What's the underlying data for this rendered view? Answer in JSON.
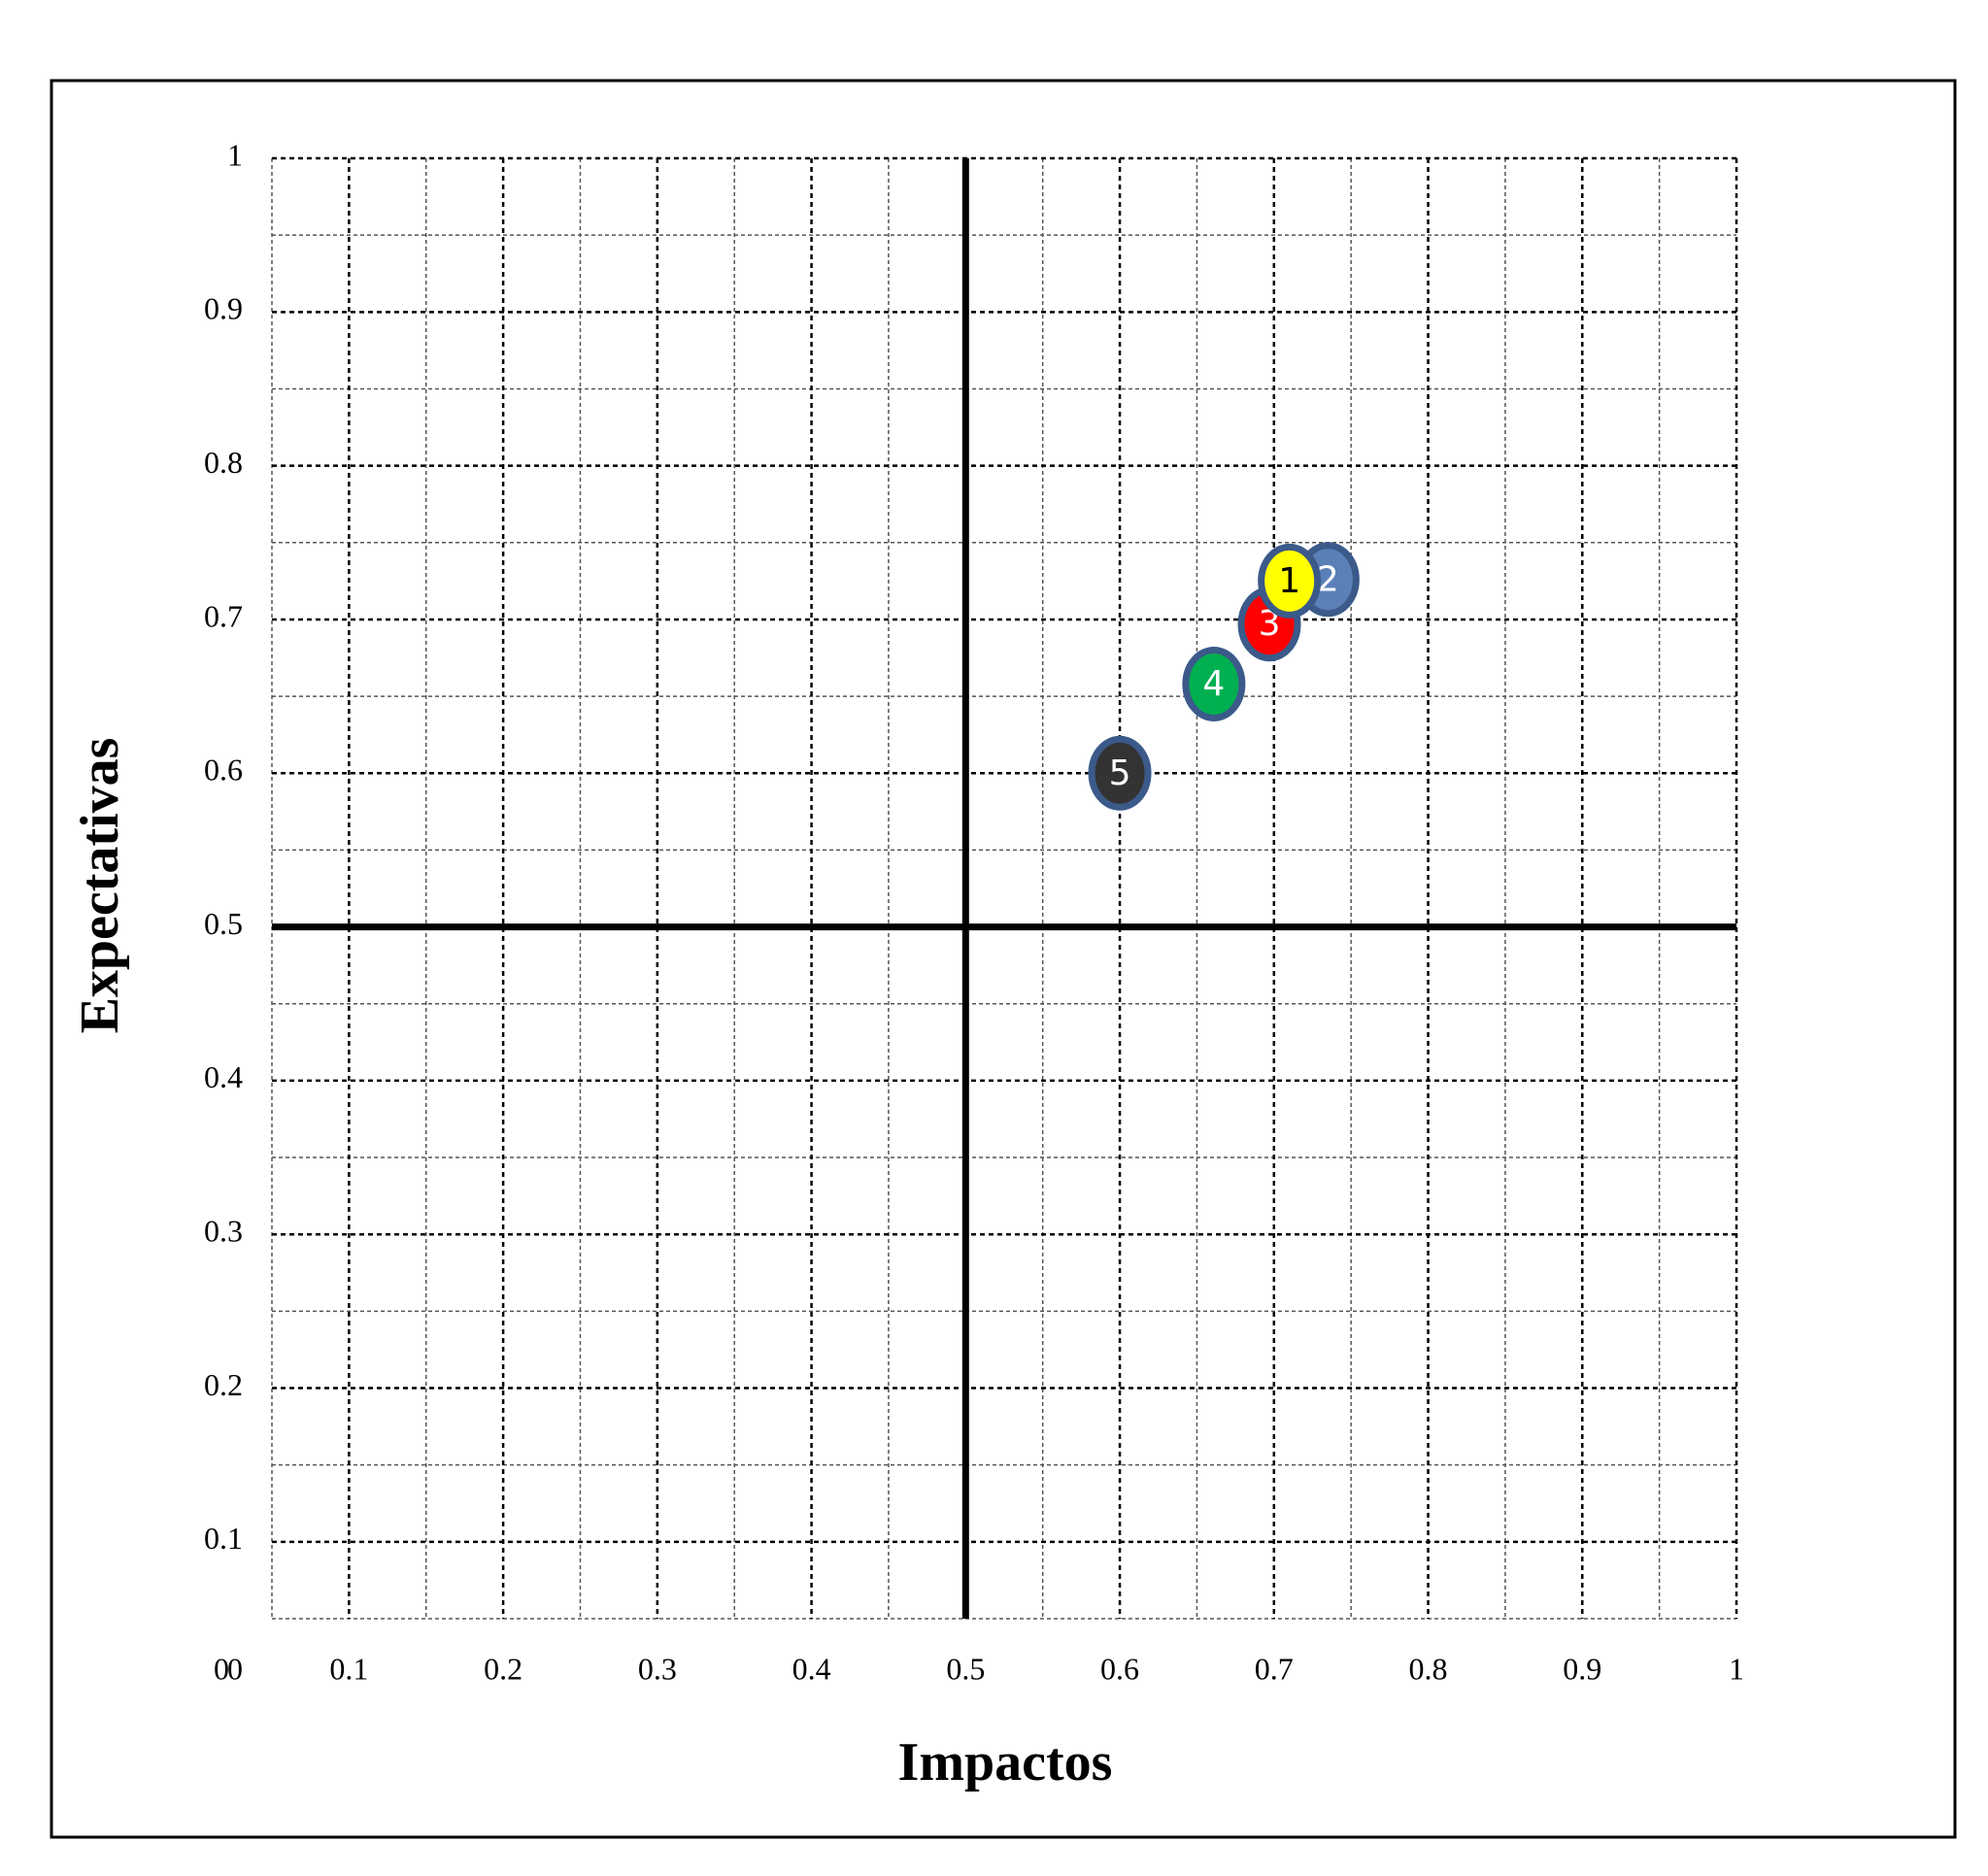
{
  "chart_data": {
    "type": "scatter",
    "x_label": "Impactos",
    "y_label": "Expectativas",
    "point_labels": [
      "1",
      "2",
      "3",
      "4",
      "5"
    ],
    "x": [
      0.71,
      0.735,
      0.697,
      0.661,
      0.6
    ],
    "values": [
      0.725,
      0.726,
      0.697,
      0.658,
      0.6
    ],
    "colors": [
      "#ffff00",
      "#5b80b8",
      "#ff0000",
      "#00b050",
      "#333333"
    ],
    "xlim": [
      0.05,
      1
    ],
    "ylim": [
      0.05,
      1
    ],
    "xticks": [
      0,
      0.1,
      0.2,
      0.3,
      0.4,
      0.5,
      0.6,
      0.7,
      0.8,
      0.9,
      1
    ],
    "yticks": [
      0,
      0.1,
      0.2,
      0.3,
      0.4,
      0.5,
      0.6,
      0.7,
      0.8,
      0.9,
      1
    ],
    "x_divider": 0.5,
    "y_divider": 0.5,
    "grid": true
  }
}
